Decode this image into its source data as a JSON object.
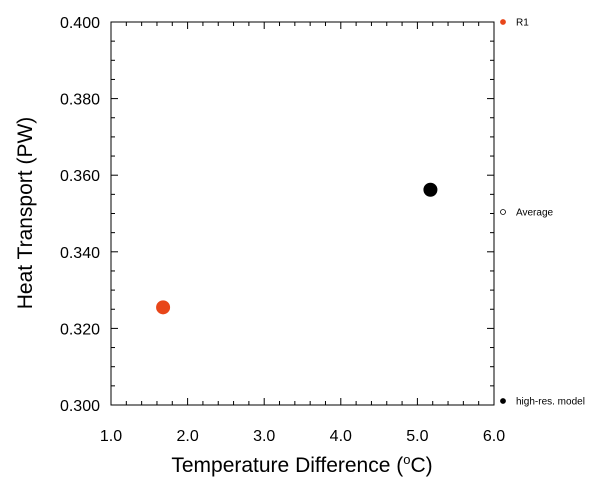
{
  "chart_data": {
    "type": "scatter",
    "title": "",
    "xlabel": "Temperature Difference (",
    "xlabel_unit_sup": "o",
    "xlabel_unit": "C)",
    "ylabel": "Heat Transport (PW)",
    "xlim": [
      1.0,
      6.0
    ],
    "ylim": [
      0.3,
      0.4
    ],
    "x_ticks": [
      "1.0",
      "2.0",
      "3.0",
      "4.0",
      "5.0",
      "6.0"
    ],
    "y_ticks": [
      "0.300",
      "0.320",
      "0.340",
      "0.360",
      "0.380",
      "0.400"
    ],
    "grid": false,
    "legend_position": "right",
    "series": [
      {
        "name": "R1",
        "color": "#e8461a",
        "marker": "filled-circle",
        "points": [
          {
            "x": 1.68,
            "y": 0.3255
          }
        ]
      },
      {
        "name": "Average",
        "color": "#000000",
        "marker": "open-circle",
        "points": []
      },
      {
        "name": "high-res. model",
        "color": "#000000",
        "marker": "filled-circle",
        "points": [
          {
            "x": 5.17,
            "y": 0.3562
          }
        ]
      }
    ]
  }
}
